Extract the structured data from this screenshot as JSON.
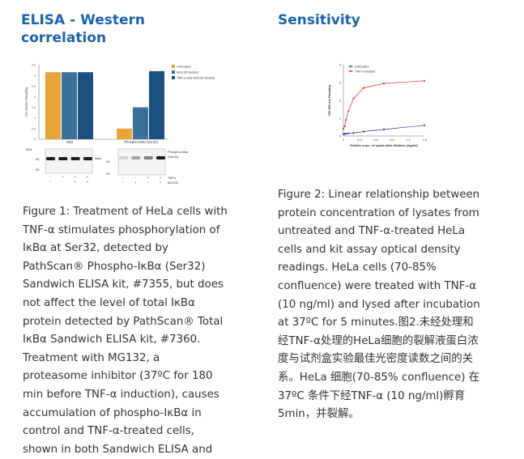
{
  "left": {
    "heading_line1": "ELISA - Western",
    "heading_line2": "correlation",
    "figure": {
      "chart_data": {
        "type": "bar",
        "ylabel": "OD 450nm Reading",
        "ylim": [
          0,
          3.5
        ],
        "yticks": [
          0,
          0.5,
          1,
          1.5,
          2,
          2.5,
          3,
          3.5
        ],
        "categories": [
          "IκBα",
          "Phospho-IκBα (Ser32)"
        ],
        "series": [
          {
            "name": "Untreated",
            "color": "#e8a33a",
            "values": [
              3.15,
              0.5
            ]
          },
          {
            "name": "MG132-treated",
            "color": "#3b7197",
            "values": [
              3.15,
              1.5
            ]
          },
          {
            "name": "TNF-α and MG132-treated",
            "color": "#1a4f80",
            "values": [
              3.15,
              3.2
            ]
          }
        ]
      },
      "blot": {
        "kda_label": "kDa",
        "markers": [
          "40",
          "30"
        ],
        "left_label": "IκBα",
        "right_label_line1": "Phospho-IκBα",
        "right_label_line2": "(Ser32)",
        "row1_label": "TNFα",
        "row2_label": "MG132",
        "left_row1": [
          "-",
          "+",
          "+",
          "+"
        ],
        "left_row2": [
          "-",
          "-",
          "+",
          "+"
        ],
        "right_row1": [
          "-",
          "-",
          "+",
          "+"
        ],
        "right_row2": [
          "-",
          "+",
          "-",
          "+"
        ]
      }
    },
    "caption_lines": [
      "Figure 1: Treatment of HeLa cells with",
      "TNF-α stimulates phosphorylation of",
      "IκBα at Ser32, detected by",
      "PathScan® Phospho-IκBα (Ser32)",
      "Sandwich ELISA kit, #7355, but does",
      "not affect the level of total IκBα",
      "protein detected by PathScan® Total",
      "IκBα Sandwich ELISA kit, #7360.",
      "Treatment with MG132, a",
      "proteasome inhibitor (37ºC for 180",
      "min before TNF-α induction), causes",
      "accumulation of phospho-IκBα in",
      "control and TNF-α-treated cells,",
      "shown in both Sandwich ELISA and"
    ]
  },
  "right": {
    "heading": "Sensitivity",
    "figure": {
      "chart_data": {
        "type": "line",
        "xlabel": "Protein conc. of lysate after dilution (mg/ml)",
        "ylabel": "OD 450 nm Reading",
        "xlim": [
          0,
          1.5
        ],
        "ylim": [
          0,
          4
        ],
        "xticks": [
          "0",
          "0.3",
          "0.6",
          "0.9",
          "1.2",
          "1.5"
        ],
        "yticks": [
          "0",
          "1",
          "2",
          "3",
          "4"
        ],
        "series": [
          {
            "name": "Untreated",
            "color": "#2a3a9a",
            "x": [
              0,
              0.0234,
              0.047,
              0.094,
              0.1875,
              0.375,
              0.75,
              1.5
            ],
            "y": [
              0.1,
              0.12,
              0.13,
              0.15,
              0.17,
              0.25,
              0.37,
              0.6
            ]
          },
          {
            "name": "TNF-α-treated",
            "color": "#e02a3a",
            "x": [
              0,
              0.0234,
              0.047,
              0.094,
              0.1875,
              0.375,
              0.75,
              1.5
            ],
            "y": [
              0.4,
              0.55,
              0.9,
              1.4,
              2.1,
              2.7,
              2.95,
              3.1
            ]
          }
        ]
      }
    },
    "caption_lines": [
      "Figure 2: Linear relationship between",
      "protein concentration of lysates from",
      "untreated and TNF-α-treated HeLa",
      "cells and kit assay optical density",
      "readings. HeLa cells (70-85%",
      "confluence) were treated with TNF-α",
      "(10 ng/ml) and lysed after incubation",
      "at 37ºC for 5 minutes.图2.未经处理和",
      "经TNF-α处理的HeLa细胞的裂解液蛋白浓",
      "度与试剂盒实验最佳光密度读数之间的关",
      "系。HeLa 细胞(70-85% confluence) 在",
      "37ºC 条件下经TNF-α (10 ng/ml)孵育",
      "5min，并裂解。"
    ]
  }
}
